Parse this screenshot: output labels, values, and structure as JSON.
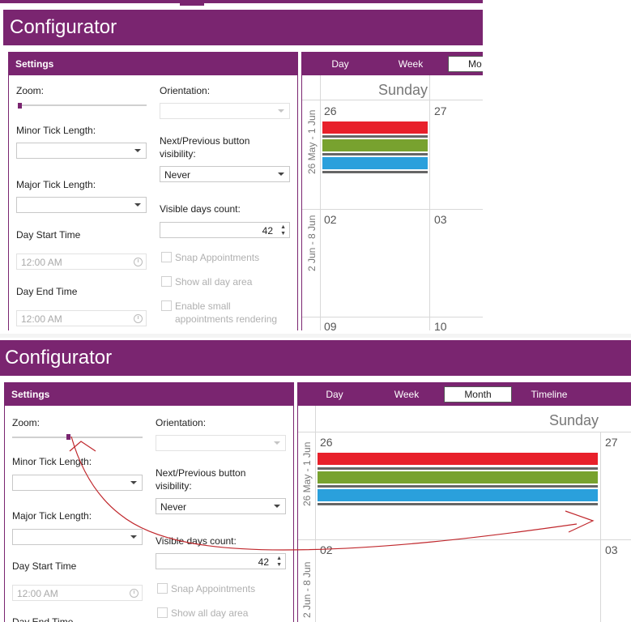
{
  "app": {
    "title": "Configurator",
    "settings_title": "Settings",
    "labels": {
      "zoom": "Zoom:",
      "orientation": "Orientation:",
      "minor_tick": "Minor Tick Length:",
      "major_tick": "Major Tick Length:",
      "nav_visibility_line1": "Next/Previous button",
      "nav_visibility_line2": "visibility:",
      "day_start": "Day Start Time",
      "day_end": "Day End Time",
      "visible_days": "Visible days count:",
      "snap": "Snap Appointments",
      "all_day": "Show all day area",
      "small_appts_line1": "Enable small",
      "small_appts_line2": "appointments rendering"
    },
    "values": {
      "nav_visibility": "Never",
      "visible_days": "42",
      "day_start": "12:00 AM",
      "day_end": "12:00 AM"
    },
    "views": {
      "day": "Day",
      "week": "Week",
      "month": "Month",
      "month_truncated": "Mo",
      "timeline": "Timeline"
    },
    "calendar": {
      "day_header": "Sunday",
      "week1_label": "26 May - 1 Jun",
      "week2_label": "2 Jun - 8 Jun",
      "dates": {
        "d26": "26",
        "d27": "27",
        "d02": "02",
        "d03": "03",
        "d09": "09",
        "d10": "10"
      }
    }
  },
  "zoom_levels": {
    "top": 0.02,
    "bottom": 0.43
  },
  "colors": {
    "brand": "#7a2570",
    "appt_red": "#e8202a",
    "appt_green": "#78a22f",
    "appt_blue": "#2aa0dc",
    "annotation": "#c0282d"
  }
}
